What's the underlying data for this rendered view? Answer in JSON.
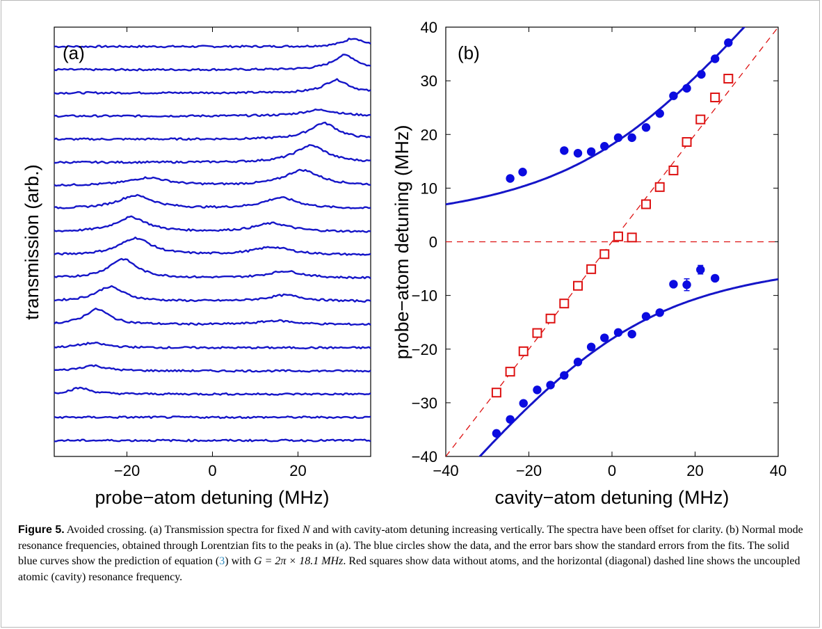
{
  "chart_data": [
    {
      "type": "line",
      "panel_label": "(a)",
      "xlabel": "probe−atom detuning (MHz)",
      "ylabel": "transmission (arb.)",
      "xlim": [
        -37,
        37
      ],
      "x_ticks": [
        -20,
        0,
        20
      ],
      "x_tick_labels": [
        "−20",
        "0",
        "20"
      ],
      "grid": false,
      "legend": "none",
      "series_color": "#1515c8",
      "series_count": 18,
      "series": [
        {
          "offset": 17,
          "peaks": [
            {
              "x": 33,
              "height": 0.55,
              "width": 2.8
            }
          ]
        },
        {
          "offset": 16,
          "peaks": [
            {
              "x": 31,
              "height": 0.95,
              "width": 3.5
            }
          ]
        },
        {
          "offset": 15,
          "peaks": [
            {
              "x": 29,
              "height": 0.85,
              "width": 3.5
            }
          ]
        },
        {
          "offset": 14,
          "peaks": [
            {
              "x": 25,
              "height": 0.4,
              "width": 5.0
            }
          ]
        },
        {
          "offset": 13,
          "peaks": [
            {
              "x": 26,
              "height": 1.05,
              "width": 4.0
            }
          ]
        },
        {
          "offset": 12,
          "peaks": [
            {
              "x": 23,
              "height": 1.1,
              "width": 4.5
            }
          ]
        },
        {
          "offset": 11,
          "peaks": [
            {
              "x": -15,
              "height": 0.5,
              "width": 5.5
            },
            {
              "x": 21,
              "height": 1.0,
              "width": 5.0
            }
          ]
        },
        {
          "offset": 10,
          "peaks": [
            {
              "x": -18,
              "height": 0.85,
              "width": 5.0
            },
            {
              "x": 16,
              "height": 0.7,
              "width": 5.0
            }
          ]
        },
        {
          "offset": 9,
          "peaks": [
            {
              "x": -19,
              "height": 0.95,
              "width": 4.5
            },
            {
              "x": 14,
              "height": 0.55,
              "width": 5.0
            }
          ]
        },
        {
          "offset": 8,
          "peaks": [
            {
              "x": -18,
              "height": 1.1,
              "width": 4.5
            },
            {
              "x": 14,
              "height": 0.5,
              "width": 5.5
            }
          ]
        },
        {
          "offset": 7,
          "peaks": [
            {
              "x": -21,
              "height": 1.25,
              "width": 4.0
            },
            {
              "x": 17,
              "height": 0.45,
              "width": 5.0
            }
          ]
        },
        {
          "offset": 6,
          "peaks": [
            {
              "x": -24,
              "height": 0.95,
              "width": 4.0
            },
            {
              "x": 17,
              "height": 0.4,
              "width": 5.0
            }
          ]
        },
        {
          "offset": 5,
          "peaks": [
            {
              "x": -27,
              "height": 1.0,
              "width": 3.5
            },
            {
              "x": 15,
              "height": 0.25,
              "width": 5.0
            }
          ]
        },
        {
          "offset": 4,
          "peaks": [
            {
              "x": -28,
              "height": 0.3,
              "width": 4.0
            }
          ]
        },
        {
          "offset": 3,
          "peaks": [
            {
              "x": -28,
              "height": 0.35,
              "width": 3.5
            }
          ]
        },
        {
          "offset": 2,
          "peaks": [
            {
              "x": -31,
              "height": 0.4,
              "width": 3.0
            }
          ]
        },
        {
          "offset": 1,
          "peaks": []
        },
        {
          "offset": 0,
          "peaks": []
        }
      ]
    },
    {
      "type": "scatter",
      "panel_label": "(b)",
      "xlabel": "cavity−atom detuning (MHz)",
      "ylabel": "probe−atom detuning (MHz)",
      "xlim": [
        -40,
        40
      ],
      "ylim": [
        -40,
        40
      ],
      "x_ticks": [
        -40,
        -20,
        0,
        20,
        40
      ],
      "x_tick_labels": [
        "−40",
        "−20",
        "0",
        "20",
        "40"
      ],
      "y_ticks": [
        -40,
        -30,
        -20,
        -10,
        0,
        10,
        20,
        30,
        40
      ],
      "y_tick_labels": [
        "−40",
        "−30",
        "−20",
        "−10",
        "0",
        "10",
        "20",
        "30",
        "40"
      ],
      "grid": false,
      "legend": "none",
      "colors": {
        "circles": "#0b0be0",
        "squares": "#dd1111",
        "fit": "#1515c8",
        "dashed": "#dd1111"
      },
      "fit_G_MHz": 18.1,
      "blue_circles_upper": [
        [
          -24.5,
          11.8
        ],
        [
          -21.5,
          13.0
        ],
        [
          -11.5,
          17.0
        ],
        [
          -8.2,
          16.5
        ],
        [
          -5.0,
          16.8
        ],
        [
          -1.8,
          17.8
        ],
        [
          1.5,
          19.4
        ],
        [
          4.8,
          19.4
        ],
        [
          8.2,
          21.3
        ],
        [
          11.5,
          23.9
        ],
        [
          14.8,
          27.2
        ],
        [
          18.0,
          28.6
        ],
        [
          21.5,
          31.2
        ],
        [
          24.8,
          34.1
        ],
        [
          28.0,
          37.1
        ]
      ],
      "blue_circles_lower": [
        {
          "x": -27.8,
          "y": -35.7
        },
        {
          "x": -24.5,
          "y": -33.1
        },
        {
          "x": -21.3,
          "y": -30.1
        },
        {
          "x": -18.0,
          "y": -27.6
        },
        {
          "x": -14.8,
          "y": -26.7
        },
        {
          "x": -11.5,
          "y": -24.9
        },
        {
          "x": -8.2,
          "y": -22.4
        },
        {
          "x": -5.0,
          "y": -19.6
        },
        {
          "x": -1.8,
          "y": -17.9
        },
        {
          "x": 1.5,
          "y": -16.9
        },
        {
          "x": 4.8,
          "y": -17.2
        },
        {
          "x": 8.2,
          "y": -13.9
        },
        {
          "x": 11.5,
          "y": -13.2
        },
        {
          "x": 14.8,
          "y": -7.9
        },
        {
          "x": 18.0,
          "y": -8.0,
          "err": 1.1
        },
        {
          "x": 21.3,
          "y": -5.2,
          "err": 0.8
        },
        {
          "x": 24.8,
          "y": -6.8
        }
      ],
      "red_squares": [
        [
          -27.8,
          -28.1
        ],
        [
          -24.5,
          -24.2
        ],
        [
          -21.3,
          -20.4
        ],
        [
          -18.0,
          -17.0
        ],
        [
          -14.8,
          -14.3
        ],
        [
          -11.5,
          -11.5
        ],
        [
          -8.2,
          -8.2
        ],
        [
          -5.0,
          -5.1
        ],
        [
          -1.8,
          -2.3
        ],
        [
          1.5,
          1.0
        ],
        [
          4.8,
          0.8
        ],
        [
          8.2,
          7.0
        ],
        [
          11.5,
          10.2
        ],
        [
          14.8,
          13.3
        ],
        [
          18.0,
          18.6
        ],
        [
          21.3,
          22.8
        ],
        [
          24.8,
          26.9
        ],
        [
          28.0,
          30.4
        ]
      ]
    }
  ],
  "caption": {
    "figure_label": "Figure 5.",
    "text_1": " Avoided crossing. (a) Transmission spectra for fixed ",
    "N": "N",
    "text_2": " and with cavity-atom detuning increasing vertically. The spectra have been offset for clarity. (b) Normal mode resonance frequencies, obtained through Lorentzian fits to the peaks in (a). The blue circles show the data, and the error bars show the standard errors from the fits. The solid blue curves show the prediction of equation (",
    "eq_ref": "3",
    "text_3": ") with ",
    "G_expr": "G = 2π × 18.1 MHz",
    "text_4": ". Red squares show data without atoms, and the horizontal (diagonal) dashed line shows the uncoupled atomic (cavity) resonance frequency."
  }
}
